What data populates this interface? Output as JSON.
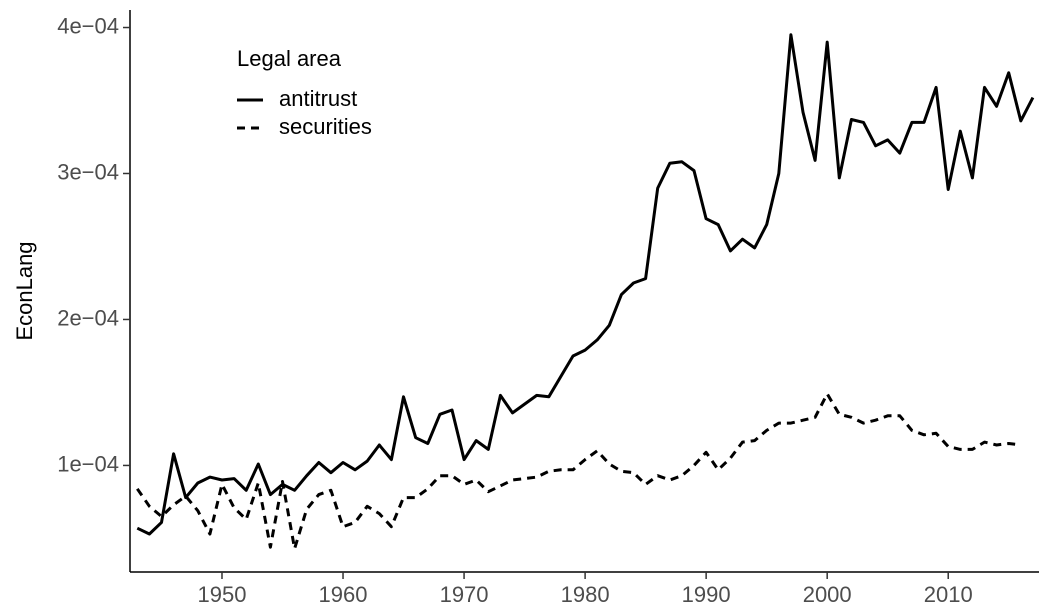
{
  "chart_data": {
    "type": "line",
    "y_label": "EconLang",
    "legend_title": "Legal area",
    "legend_position": "top-left",
    "grid": false,
    "x": [
      1943,
      1944,
      1945,
      1946,
      1947,
      1948,
      1949,
      1950,
      1951,
      1952,
      1953,
      1954,
      1955,
      1956,
      1957,
      1958,
      1959,
      1960,
      1961,
      1962,
      1963,
      1964,
      1965,
      1966,
      1967,
      1968,
      1969,
      1970,
      1971,
      1972,
      1973,
      1974,
      1975,
      1976,
      1977,
      1978,
      1979,
      1980,
      1981,
      1982,
      1983,
      1984,
      1985,
      1986,
      1987,
      1988,
      1989,
      1990,
      1991,
      1992,
      1993,
      1994,
      1995,
      1996,
      1997,
      1998,
      1999,
      2000,
      2001,
      2002,
      2003,
      2004,
      2005,
      2006,
      2007,
      2008,
      2009,
      2010,
      2011,
      2012,
      2013,
      2014,
      2015,
      2016,
      2017
    ],
    "series": [
      {
        "name": "antitrust",
        "color": "#000000",
        "linestyle": "solid",
        "values": [
          5.7e-05,
          5.3e-05,
          6.1e-05,
          0.000108,
          7.8e-05,
          8.8e-05,
          9.2e-05,
          9e-05,
          9.1e-05,
          8.3e-05,
          0.000101,
          8e-05,
          8.7e-05,
          8.3e-05,
          9.3e-05,
          0.000102,
          9.5e-05,
          0.000102,
          9.7e-05,
          0.000103,
          0.000114,
          0.000104,
          0.000147,
          0.000119,
          0.000115,
          0.000135,
          0.000138,
          0.000104,
          0.000117,
          0.000111,
          0.000148,
          0.000136,
          0.000142,
          0.000148,
          0.000147,
          0.000161,
          0.000175,
          0.000179,
          0.000186,
          0.000196,
          0.000217,
          0.000225,
          0.000228,
          0.00029,
          0.000307,
          0.000308,
          0.000302,
          0.000269,
          0.000265,
          0.000247,
          0.000255,
          0.000249,
          0.000265,
          0.0003,
          0.000395,
          0.000342,
          0.000309,
          0.00039,
          0.000297,
          0.000337,
          0.000335,
          0.000319,
          0.000323,
          0.000314,
          0.000335,
          0.000335,
          0.000359,
          0.000289,
          0.000329,
          0.000297,
          0.000359,
          0.000346,
          0.000369,
          0.000336,
          0.000352
        ]
      },
      {
        "name": "securities",
        "color": "#000000",
        "linestyle": "dashed",
        "values": [
          8.4e-05,
          7.2e-05,
          6.5e-05,
          7.3e-05,
          7.9e-05,
          6.9e-05,
          5.3e-05,
          8.7e-05,
          7.1e-05,
          6.3e-05,
          8.8e-05,
          4.4e-05,
          8.9e-05,
          4.3e-05,
          7e-05,
          8e-05,
          8.3e-05,
          5.8e-05,
          6.1e-05,
          7.2e-05,
          6.7e-05,
          5.8e-05,
          7.8e-05,
          7.8e-05,
          8.4e-05,
          9.3e-05,
          9.3e-05,
          8.7e-05,
          9e-05,
          8.2e-05,
          8.6e-05,
          9e-05,
          9.1e-05,
          9.2e-05,
          9.6e-05,
          9.7e-05,
          9.7e-05,
          0.000104,
          0.00011,
          0.000101,
          9.6e-05,
          9.5e-05,
          8.7e-05,
          9.3e-05,
          9e-05,
          9.3e-05,
          0.0001,
          0.000109,
          9.7e-05,
          0.000105,
          0.000116,
          0.000117,
          0.000124,
          0.000129,
          0.000129,
          0.000131,
          0.000133,
          0.000149,
          0.000135,
          0.000133,
          0.000129,
          0.000131,
          0.000134,
          0.000134,
          0.000124,
          0.000121,
          0.000122,
          0.000113,
          0.000111,
          0.000111,
          0.000116,
          0.000114,
          0.000115,
          0.000114,
          null
        ]
      }
    ],
    "xlim": [
      1942.4,
      2017.5
    ],
    "xticks": [
      1950,
      1960,
      1970,
      1980,
      1990,
      2000,
      2010
    ],
    "ylim": [
      2.7e-05,
      0.000412
    ],
    "yticks": [
      {
        "value": 0.0001,
        "label": "1e−04"
      },
      {
        "value": 0.0002,
        "label": "2e−04"
      },
      {
        "value": 0.0003,
        "label": "3e−04"
      },
      {
        "value": 0.0004,
        "label": "4e−04"
      }
    ]
  }
}
